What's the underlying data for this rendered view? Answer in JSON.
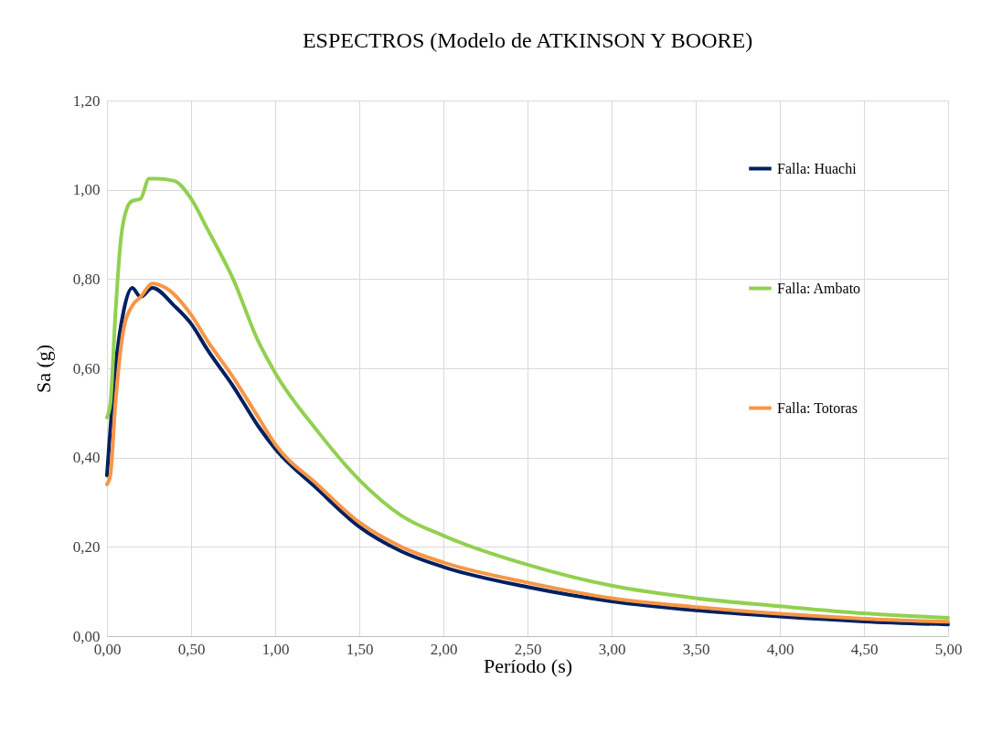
{
  "chart_data": {
    "type": "line",
    "title": "ESPECTROS (Modelo de ATKINSON Y BOORE)",
    "xlabel": "Período (s)",
    "ylabel": "Sa (g)",
    "xlim": [
      0,
      5
    ],
    "ylim": [
      0,
      1.2
    ],
    "xticks": [
      {
        "value": 0,
        "label": "0,00"
      },
      {
        "value": 0.5,
        "label": "0,50"
      },
      {
        "value": 1,
        "label": "1,00"
      },
      {
        "value": 1.5,
        "label": "1,50"
      },
      {
        "value": 2,
        "label": "2,00"
      },
      {
        "value": 2.5,
        "label": "2,50"
      },
      {
        "value": 3,
        "label": "3,00"
      },
      {
        "value": 3.5,
        "label": "3,50"
      },
      {
        "value": 4,
        "label": "4,00"
      },
      {
        "value": 4.5,
        "label": "4,50"
      },
      {
        "value": 5,
        "label": "5,00"
      }
    ],
    "yticks": [
      {
        "value": 0,
        "label": "0,00"
      },
      {
        "value": 0.2,
        "label": "0,20"
      },
      {
        "value": 0.4,
        "label": "0,40"
      },
      {
        "value": 0.6,
        "label": "0,60"
      },
      {
        "value": 0.8,
        "label": "0,80"
      },
      {
        "value": 1,
        "label": "1,00"
      },
      {
        "value": 1.2,
        "label": "1,20"
      }
    ],
    "grid": true,
    "legend": "right",
    "marker": "none",
    "line_style": "solid",
    "series": [
      {
        "name": "Falla: Huachi",
        "color": "#002060",
        "x": [
          0,
          0.05,
          0.1,
          0.15,
          0.2,
          0.27,
          0.4,
          0.5,
          0.6,
          0.75,
          0.9,
          1.0,
          1.25,
          1.5,
          1.75,
          2.0,
          2.5,
          3.0,
          3.5,
          4.0,
          4.5,
          5.0
        ],
        "values": [
          0.36,
          0.6,
          0.73,
          0.78,
          0.76,
          0.78,
          0.74,
          0.7,
          0.64,
          0.56,
          0.47,
          0.42,
          0.33,
          0.245,
          0.19,
          0.155,
          0.11,
          0.078,
          0.058,
          0.044,
          0.033,
          0.026
        ]
      },
      {
        "name": "Falla: Ambato",
        "color": "#92d050",
        "x": [
          0,
          0.02,
          0.05,
          0.08,
          0.12,
          0.15,
          0.2,
          0.25,
          0.3,
          0.4,
          0.5,
          0.6,
          0.75,
          0.9,
          1.0,
          1.25,
          1.5,
          1.75,
          2.0,
          2.5,
          3.0,
          3.5,
          4.0,
          4.5,
          5.0
        ],
        "values": [
          0.49,
          0.52,
          0.72,
          0.88,
          0.96,
          0.975,
          0.98,
          1.025,
          1.025,
          1.02,
          0.98,
          0.91,
          0.8,
          0.66,
          0.59,
          0.46,
          0.35,
          0.27,
          0.225,
          0.16,
          0.113,
          0.085,
          0.067,
          0.051,
          0.041
        ]
      },
      {
        "name": "Falla: Totoras",
        "color": "#f79646",
        "x": [
          0,
          0.02,
          0.05,
          0.1,
          0.15,
          0.2,
          0.27,
          0.35,
          0.5,
          0.6,
          0.75,
          0.9,
          1.0,
          1.25,
          1.5,
          1.75,
          2.0,
          2.5,
          3.0,
          3.5,
          4.0,
          4.5,
          5.0
        ],
        "values": [
          0.34,
          0.36,
          0.52,
          0.69,
          0.74,
          0.76,
          0.79,
          0.78,
          0.72,
          0.66,
          0.58,
          0.49,
          0.43,
          0.34,
          0.255,
          0.2,
          0.165,
          0.12,
          0.085,
          0.065,
          0.05,
          0.039,
          0.032
        ]
      }
    ]
  }
}
